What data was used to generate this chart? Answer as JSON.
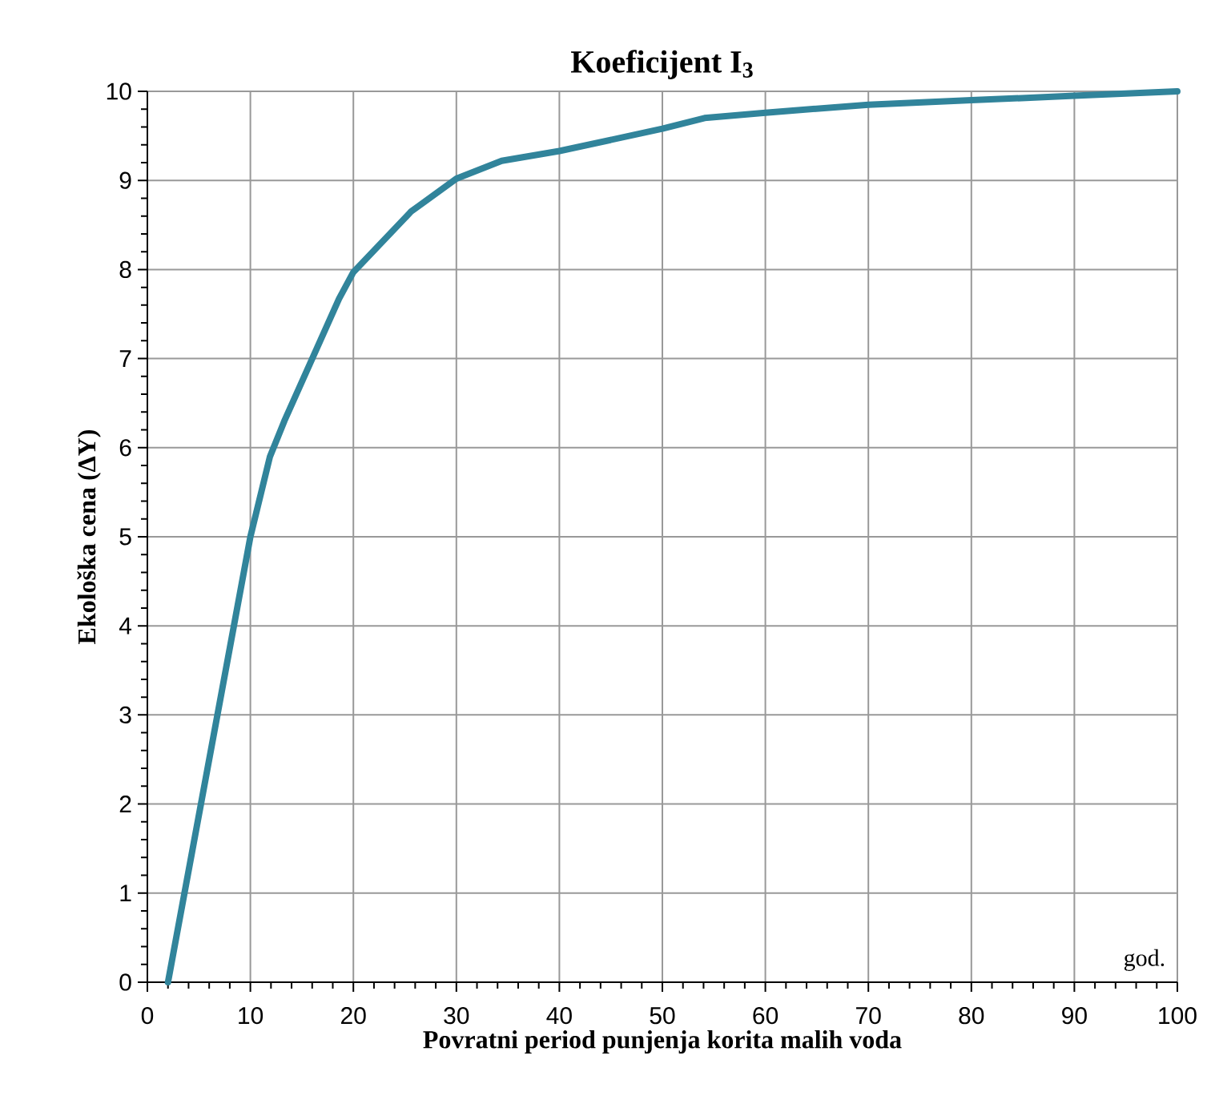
{
  "chart_data": {
    "type": "line",
    "title": "Koeficijent I$_{3}$",
    "xlabel": "Povratni period punjenja korita malih voda",
    "ylabel": "Ekološka cena (ΔY)",
    "annotations": [
      "god."
    ],
    "series": [
      {
        "color": "#31849b",
        "x": [
          2,
          10,
          11.9,
          13.3,
          18.6,
          20,
          25.6,
          30,
          34.4,
          40,
          50,
          54.1,
          60,
          70,
          80,
          90,
          100
        ],
        "values": [
          0,
          5,
          5.9,
          6.3,
          7.67,
          7.97,
          8.65,
          9.02,
          9.22,
          9.33,
          9.58,
          9.7,
          9.76,
          9.85,
          9.9,
          9.95,
          10
        ]
      }
    ],
    "xlim": [
      0,
      100
    ],
    "ylim": [
      0,
      10
    ],
    "xticks": [
      0,
      10,
      20,
      30,
      40,
      50,
      60,
      70,
      80,
      90,
      100
    ],
    "yticks": [
      0,
      1,
      2,
      3,
      4,
      5,
      6,
      7,
      8,
      9,
      10
    ],
    "grid": true,
    "marker": "none",
    "line_style": "solid"
  }
}
